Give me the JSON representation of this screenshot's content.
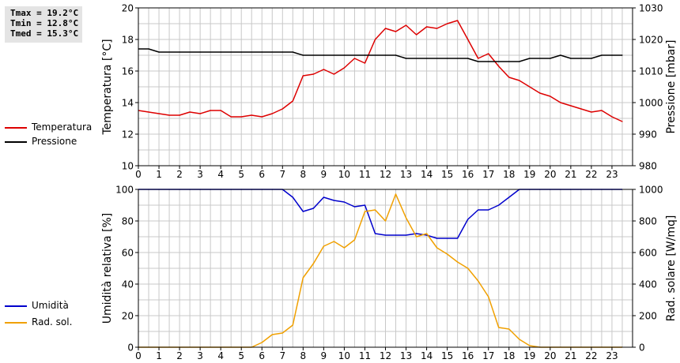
{
  "stats": {
    "tmax": "Tmax = 19.2°C",
    "tmin": "Tmin = 12.8°C",
    "tmed": "Tmed = 15.3°C"
  },
  "legend_top": [
    {
      "label": "Temperatura",
      "color": "#dd0000"
    },
    {
      "label": "Pressione",
      "color": "#000000"
    }
  ],
  "legend_bottom": [
    {
      "label": "Umidità",
      "color": "#0000cc"
    },
    {
      "label": "Rad. sol.",
      "color": "#f0a000"
    }
  ],
  "chart_data": [
    {
      "type": "line",
      "ylabel": "Temperatura [°C]",
      "y2label": "Pressione [mbar]",
      "xlim": [
        0,
        24
      ],
      "ylim": [
        10,
        20
      ],
      "y2lim": [
        980,
        1030
      ],
      "xticks": [
        "0",
        "1",
        "2",
        "3",
        "4",
        "5",
        "6",
        "7",
        "8",
        "9",
        "10",
        "11",
        "12",
        "13",
        "14",
        "15",
        "16",
        "17",
        "18",
        "19",
        "20",
        "21",
        "22",
        "23"
      ],
      "yticks": [
        "10",
        "12",
        "14",
        "16",
        "18",
        "20"
      ],
      "y2ticks": [
        "980",
        "990",
        "1000",
        "1010",
        "1020",
        "1030"
      ],
      "grid": true,
      "series": [
        {
          "name": "Temperatura",
          "axis": "left",
          "color": "#dd0000",
          "x": [
            0,
            0.5,
            1,
            1.5,
            2,
            2.5,
            3,
            3.5,
            4,
            4.5,
            5,
            5.5,
            6,
            6.5,
            7,
            7.5,
            8,
            8.5,
            9,
            9.5,
            10,
            10.5,
            11,
            11.5,
            12,
            12.5,
            13,
            13.5,
            14,
            14.5,
            15,
            15.5,
            16,
            16.5,
            17,
            17.5,
            18,
            18.5,
            19,
            19.5,
            20,
            20.5,
            21,
            21.5,
            22,
            22.5,
            23,
            23.5
          ],
          "y": [
            13.5,
            13.4,
            13.3,
            13.2,
            13.2,
            13.4,
            13.3,
            13.5,
            13.5,
            13.1,
            13.1,
            13.2,
            13.1,
            13.3,
            13.6,
            14.1,
            15.7,
            15.8,
            16.1,
            15.8,
            16.2,
            16.8,
            16.5,
            18.0,
            18.7,
            18.5,
            18.9,
            18.3,
            18.8,
            18.7,
            19.0,
            19.2,
            18.0,
            16.8,
            17.1,
            16.3,
            15.6,
            15.4,
            15.0,
            14.6,
            14.4,
            14.0,
            13.8,
            13.6,
            13.4,
            13.5,
            13.1,
            12.8
          ]
        },
        {
          "name": "Pressione",
          "axis": "right",
          "color": "#000000",
          "x": [
            0,
            0.5,
            1,
            2,
            3,
            4,
            5,
            6,
            7,
            7.5,
            8,
            9,
            10,
            11,
            12,
            12.5,
            13,
            14,
            15,
            16,
            16.5,
            17,
            18,
            18.5,
            19,
            20,
            20.5,
            21,
            22,
            22.5,
            23,
            23.5
          ],
          "y": [
            1017,
            1017,
            1016,
            1016,
            1016,
            1016,
            1016,
            1016,
            1016,
            1016,
            1015,
            1015,
            1015,
            1015,
            1015,
            1015,
            1014,
            1014,
            1014,
            1014,
            1013,
            1013,
            1013,
            1013,
            1014,
            1014,
            1015,
            1014,
            1014,
            1015,
            1015,
            1015
          ]
        }
      ]
    },
    {
      "type": "line",
      "ylabel": "Umidità relativa [%]",
      "y2label": "Rad. solare [W/mq]",
      "xlim": [
        0,
        24
      ],
      "ylim": [
        0,
        100
      ],
      "y2lim": [
        0,
        1000
      ],
      "xticks": [
        "0",
        "1",
        "2",
        "3",
        "4",
        "5",
        "6",
        "7",
        "8",
        "9",
        "10",
        "11",
        "12",
        "13",
        "14",
        "15",
        "16",
        "17",
        "18",
        "19",
        "20",
        "21",
        "22",
        "23"
      ],
      "yticks": [
        "0",
        "20",
        "40",
        "60",
        "80",
        "100"
      ],
      "y2ticks": [
        "0",
        "200",
        "400",
        "600",
        "800",
        "1000"
      ],
      "grid": true,
      "series": [
        {
          "name": "Umidità",
          "axis": "left",
          "color": "#0000cc",
          "x": [
            0,
            0.5,
            1,
            1.5,
            2,
            2.5,
            3,
            3.5,
            4,
            4.5,
            5,
            5.5,
            6,
            6.5,
            7,
            7.5,
            8,
            8.5,
            9,
            9.5,
            10,
            10.5,
            11,
            11.5,
            12,
            12.5,
            13,
            13.5,
            14,
            14.5,
            15,
            15.5,
            16,
            16.5,
            17,
            17.5,
            18,
            18.5,
            19,
            19.5,
            20,
            20.5,
            21,
            21.5,
            22,
            22.5,
            23,
            23.5
          ],
          "y": [
            100,
            100,
            100,
            100,
            100,
            100,
            100,
            100,
            100,
            100,
            100,
            100,
            100,
            100,
            100,
            95,
            86,
            88,
            95,
            93,
            92,
            89,
            90,
            72,
            71,
            71,
            71,
            72,
            71,
            69,
            69,
            69,
            81,
            87,
            87,
            90,
            95,
            100,
            100,
            100,
            100,
            100,
            100,
            100,
            100,
            100,
            100,
            100
          ]
        },
        {
          "name": "Rad. sol.",
          "axis": "right",
          "color": "#f0a000",
          "x": [
            0,
            0.5,
            1,
            1.5,
            2,
            2.5,
            3,
            3.5,
            4,
            4.5,
            5,
            5.5,
            6,
            6.5,
            7,
            7.5,
            8,
            8.5,
            9,
            9.5,
            10,
            10.5,
            11,
            11.5,
            12,
            12.5,
            13,
            13.5,
            14,
            14.5,
            15,
            15.5,
            16,
            16.5,
            17,
            17.5,
            18,
            18.5,
            19,
            19.5,
            20,
            20.5,
            21,
            21.5,
            22,
            22.5,
            23,
            23.5
          ],
          "y": [
            0,
            0,
            0,
            0,
            0,
            0,
            0,
            0,
            0,
            0,
            0,
            0,
            30,
            80,
            90,
            140,
            440,
            530,
            640,
            670,
            630,
            680,
            860,
            870,
            800,
            970,
            820,
            700,
            720,
            630,
            590,
            540,
            500,
            420,
            320,
            125,
            115,
            50,
            10,
            0,
            0,
            0,
            0,
            0,
            0,
            0,
            0,
            0
          ]
        }
      ]
    }
  ]
}
